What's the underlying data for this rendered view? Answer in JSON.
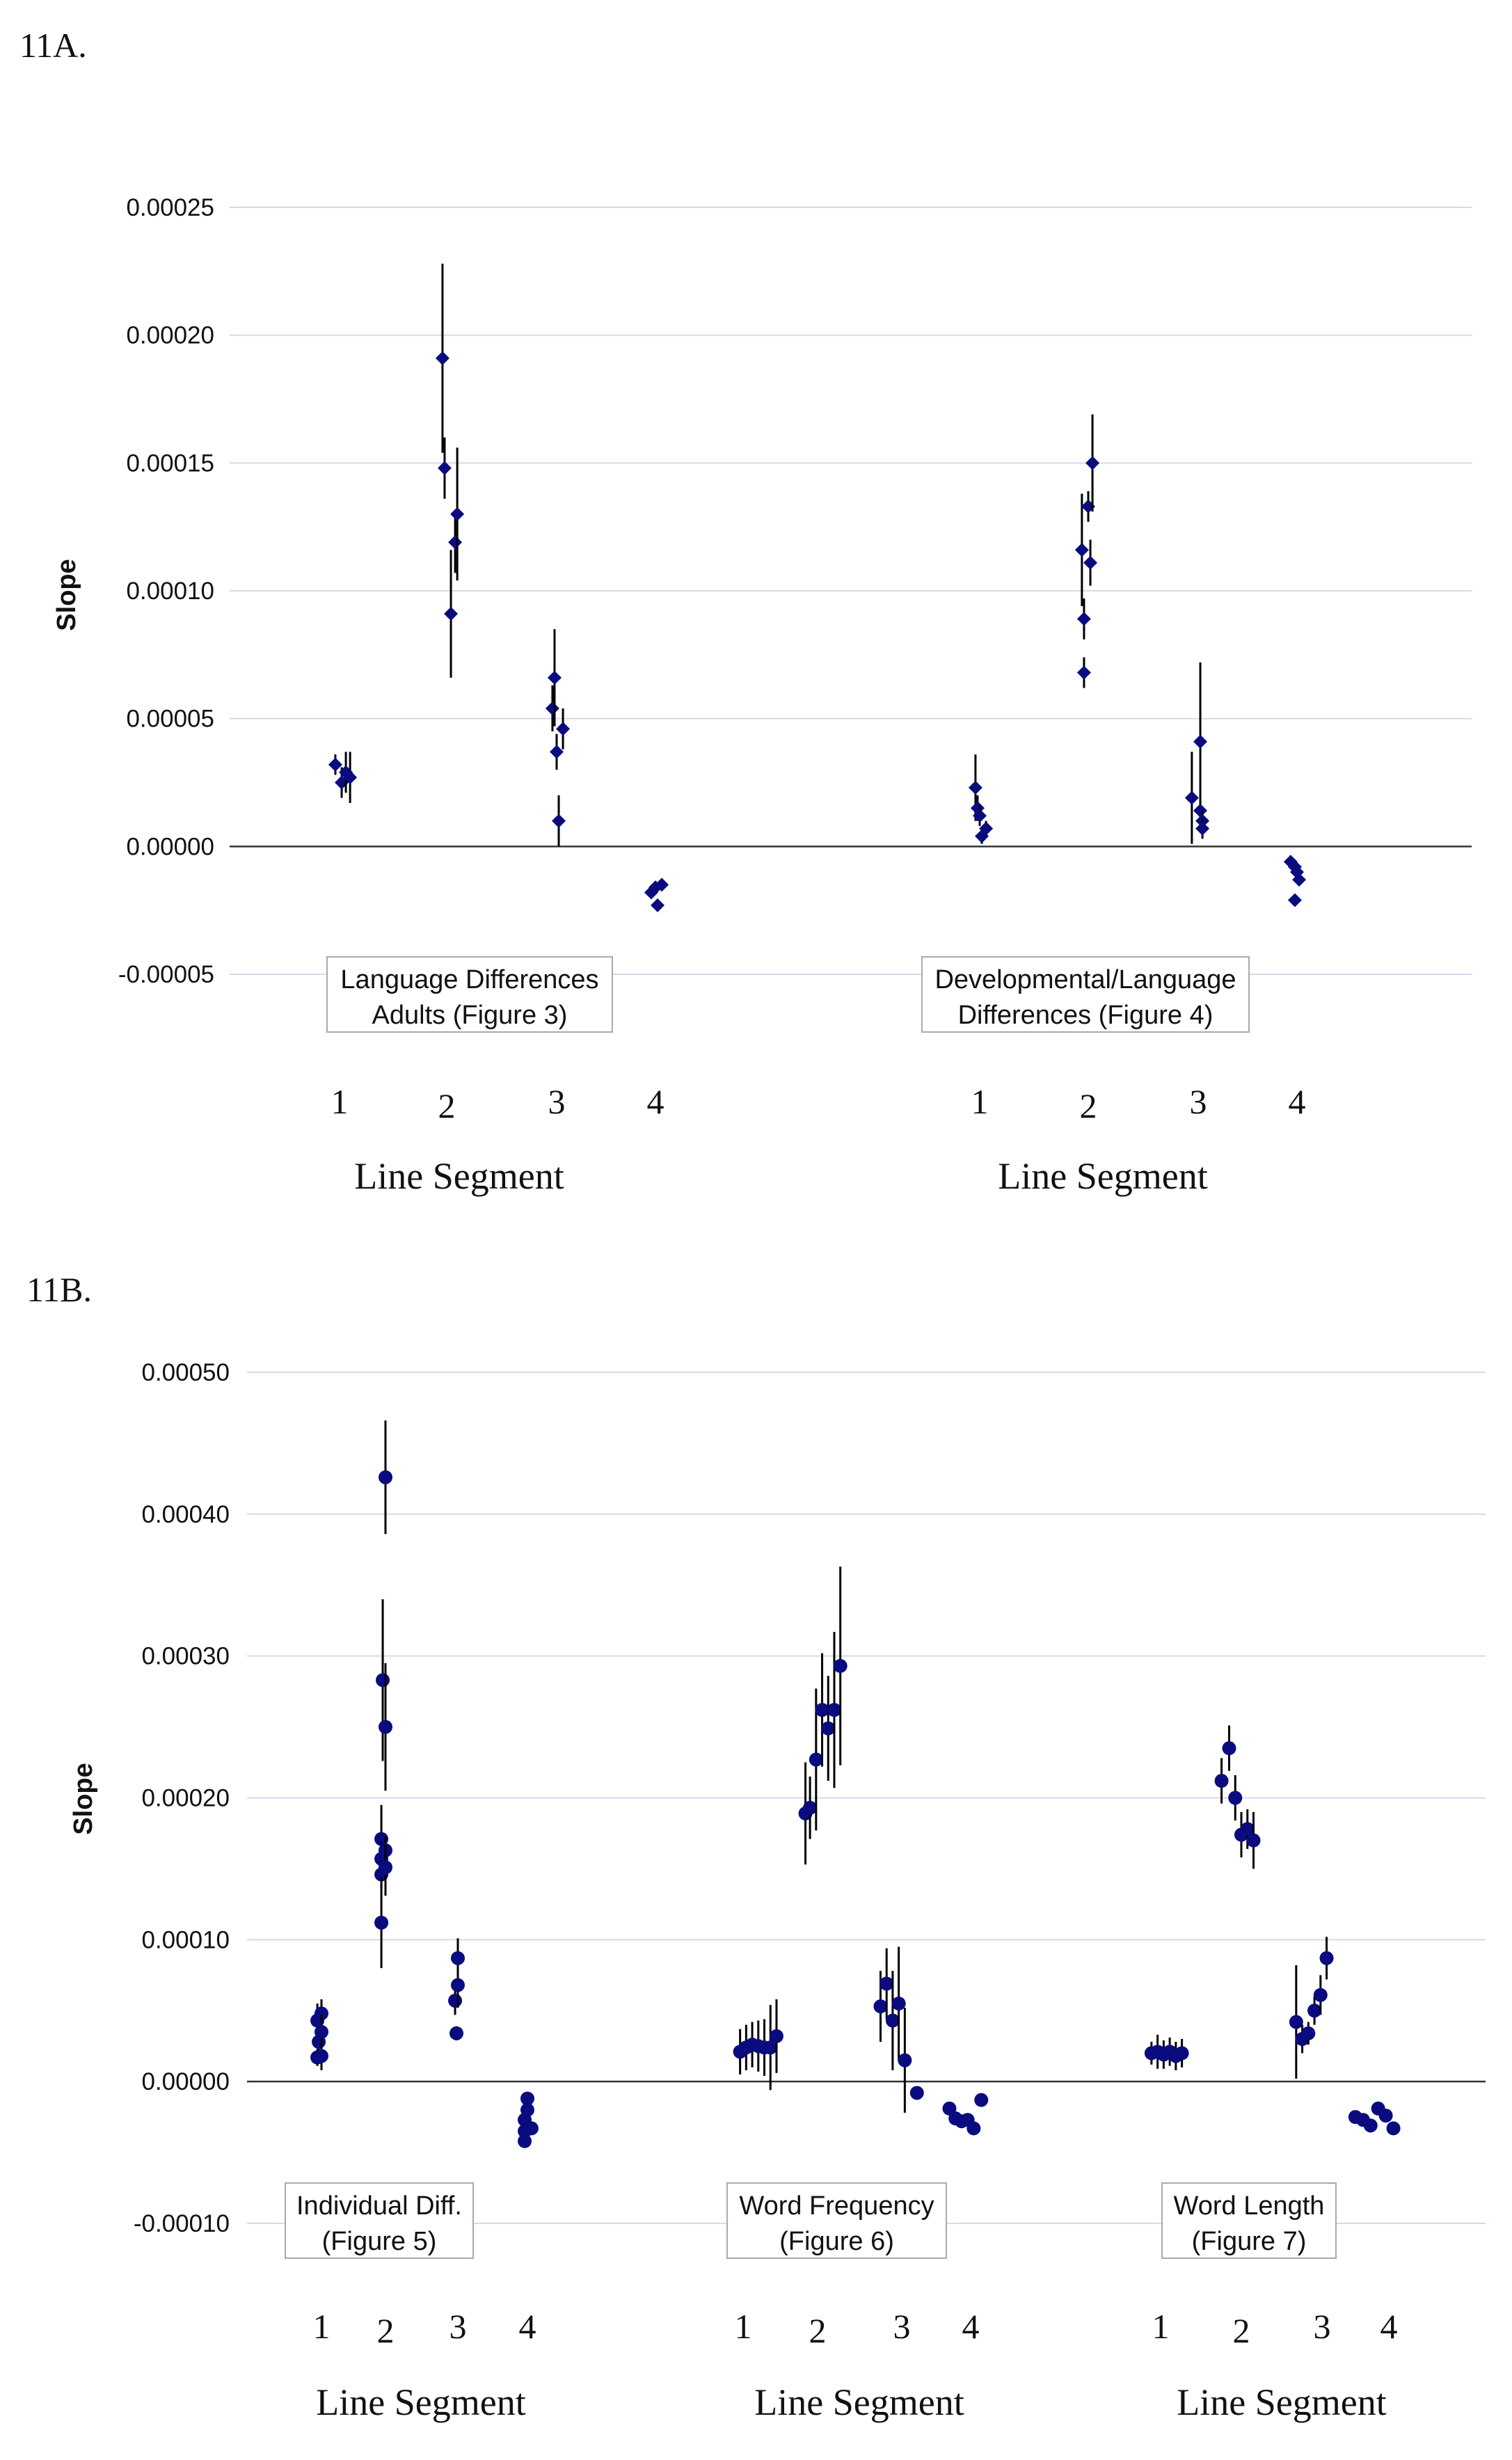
{
  "chart_data": [
    {
      "id": "11A",
      "panel_label": "11A.",
      "type": "scatter",
      "marker": "diamond",
      "ylabel": "Slope",
      "ylim": [
        -5e-05,
        0.00025
      ],
      "yticks": [
        "0.00025",
        "0.00020",
        "0.00015",
        "0.00010",
        "0.00005",
        "0.00000",
        "-0.00005"
      ],
      "grid": true,
      "groups": [
        {
          "label": [
            "Language Differences",
            "Adults (Figure 3)"
          ],
          "xlabel": "Line Segment",
          "tick_labels": [
            "1",
            "2",
            "3",
            "4"
          ],
          "points": [
            {
              "segment": 1,
              "offset": -0.04,
              "y": 3.2e-05,
              "err": 4e-06
            },
            {
              "segment": 1,
              "offset": 0.02,
              "y": 2.5e-05,
              "err": 6e-06
            },
            {
              "segment": 1,
              "offset": 0.06,
              "y": 2.9e-05,
              "err": 8e-06
            },
            {
              "segment": 1,
              "offset": 0.1,
              "y": 2.7e-05,
              "err": 1e-05
            },
            {
              "segment": 2,
              "offset": -0.04,
              "y": 0.000191,
              "err": 3.7e-05
            },
            {
              "segment": 2,
              "offset": -0.02,
              "y": 0.000148,
              "err": 1.2e-05
            },
            {
              "segment": 2,
              "offset": 0.04,
              "y": 9.1e-05,
              "err": 2.5e-05
            },
            {
              "segment": 2,
              "offset": 0.08,
              "y": 0.000119,
              "err": 1.2e-05
            },
            {
              "segment": 2,
              "offset": 0.1,
              "y": 0.00013,
              "err": 2.6e-05
            },
            {
              "segment": 3,
              "offset": -0.04,
              "y": 5.4e-05,
              "err": 9e-06
            },
            {
              "segment": 3,
              "offset": -0.02,
              "y": 6.6e-05,
              "err": 1.9e-05
            },
            {
              "segment": 3,
              "offset": 0.0,
              "y": 3.7e-05,
              "err": 7e-06
            },
            {
              "segment": 3,
              "offset": 0.02,
              "y": 1e-05,
              "err": 1e-05
            },
            {
              "segment": 3,
              "offset": 0.06,
              "y": 4.6e-05,
              "err": 8e-06
            },
            {
              "segment": 4,
              "offset": -0.04,
              "y": -1.8e-05,
              "err": 0
            },
            {
              "segment": 4,
              "offset": 0.0,
              "y": -1.6e-05,
              "err": 0
            },
            {
              "segment": 4,
              "offset": 0.02,
              "y": -2.3e-05,
              "err": 0
            },
            {
              "segment": 4,
              "offset": 0.06,
              "y": -1.5e-05,
              "err": 0
            }
          ]
        },
        {
          "label": [
            "Developmental/Language",
            "Differences (Figure 4)"
          ],
          "xlabel": "Line Segment",
          "tick_labels": [
            "1",
            "2",
            "3",
            "4"
          ],
          "points": [
            {
              "segment": 1,
              "offset": -0.04,
              "y": 2.3e-05,
              "err": 1.3e-05
            },
            {
              "segment": 1,
              "offset": -0.02,
              "y": 1.5e-05,
              "err": 5e-06
            },
            {
              "segment": 1,
              "offset": 0.0,
              "y": 1.2e-05,
              "err": 4e-06
            },
            {
              "segment": 1,
              "offset": 0.02,
              "y": 4e-06,
              "err": 3e-06
            },
            {
              "segment": 1,
              "offset": 0.06,
              "y": 7e-06,
              "err": 3e-06
            },
            {
              "segment": 2,
              "offset": -0.06,
              "y": 0.000116,
              "err": 2.2e-05
            },
            {
              "segment": 2,
              "offset": -0.04,
              "y": 8.9e-05,
              "err": 8e-06
            },
            {
              "segment": 2,
              "offset": -0.04,
              "y": 6.8e-05,
              "err": 6e-06
            },
            {
              "segment": 2,
              "offset": 0.0,
              "y": 0.000133,
              "err": 6e-06
            },
            {
              "segment": 2,
              "offset": 0.02,
              "y": 0.000111,
              "err": 9e-06
            },
            {
              "segment": 2,
              "offset": 0.04,
              "y": 0.00015,
              "err": 1.9e-05
            },
            {
              "segment": 3,
              "offset": -0.06,
              "y": 1.9e-05,
              "err": 1.8e-05
            },
            {
              "segment": 3,
              "offset": 0.02,
              "y": 4.1e-05,
              "err": 3.1e-05
            },
            {
              "segment": 3,
              "offset": 0.02,
              "y": 1.4e-05,
              "err": 4e-06
            },
            {
              "segment": 3,
              "offset": 0.04,
              "y": 1e-05,
              "err": 4e-06
            },
            {
              "segment": 3,
              "offset": 0.04,
              "y": 7e-06,
              "err": 4e-06
            },
            {
              "segment": 4,
              "offset": -0.06,
              "y": -6e-06,
              "err": 0
            },
            {
              "segment": 4,
              "offset": -0.02,
              "y": -8e-06,
              "err": 0
            },
            {
              "segment": 4,
              "offset": 0.0,
              "y": -1e-05,
              "err": 0
            },
            {
              "segment": 4,
              "offset": 0.02,
              "y": -1.3e-05,
              "err": 0
            },
            {
              "segment": 4,
              "offset": -0.02,
              "y": -2.1e-05,
              "err": 0
            }
          ]
        }
      ]
    },
    {
      "id": "11B",
      "panel_label": "11B.",
      "type": "scatter",
      "marker": "circle",
      "ylabel": "Slope",
      "ylim": [
        -0.0001,
        0.0005
      ],
      "yticks": [
        "0.00050",
        "0.00040",
        "0.00030",
        "0.00020",
        "0.00010",
        "0.00000",
        "-0.00010"
      ],
      "grid": true,
      "groups": [
        {
          "label": [
            "Individual Diff.",
            "(Figure 5)"
          ],
          "xlabel": "Line Segment",
          "tick_labels": [
            "1",
            "2",
            "3",
            "4"
          ],
          "points": [
            {
              "segment": 1,
              "offset": -0.06,
              "y": 4.3e-05,
              "err": 1.2e-05
            },
            {
              "segment": 1,
              "offset": -0.04,
              "y": 2.8e-05,
              "err": 1e-05
            },
            {
              "segment": 1,
              "offset": -0.06,
              "y": 1.7e-05,
              "err": 6e-06
            },
            {
              "segment": 1,
              "offset": 0.0,
              "y": 4.8e-05,
              "err": 1e-05
            },
            {
              "segment": 1,
              "offset": 0.0,
              "y": 3.5e-05,
              "err": 1.2e-05
            },
            {
              "segment": 1,
              "offset": 0.0,
              "y": 1.8e-05,
              "err": 1e-05
            },
            {
              "segment": 2,
              "offset": -0.04,
              "y": 0.000283,
              "err": 5.7e-05
            },
            {
              "segment": 2,
              "offset": 0.0,
              "y": 0.00025,
              "err": 4.5e-05
            },
            {
              "segment": 2,
              "offset": 0.0,
              "y": 0.000426,
              "err": 4e-05
            },
            {
              "segment": 2,
              "offset": -0.06,
              "y": 0.000171,
              "err": 2.4e-05
            },
            {
              "segment": 2,
              "offset": -0.06,
              "y": 0.000157,
              "err": 1.2e-05
            },
            {
              "segment": 2,
              "offset": -0.06,
              "y": 0.000146,
              "err": 1e-05
            },
            {
              "segment": 2,
              "offset": -0.06,
              "y": 0.000112,
              "err": 3.2e-05
            },
            {
              "segment": 2,
              "offset": 0.0,
              "y": 0.000163,
              "err": 1e-05
            },
            {
              "segment": 2,
              "offset": 0.0,
              "y": 0.000151,
              "err": 2e-05
            },
            {
              "segment": 3,
              "offset": -0.04,
              "y": 5.7e-05,
              "err": 1e-05
            },
            {
              "segment": 3,
              "offset": 0.0,
              "y": 6.8e-05,
              "err": 1.6e-05
            },
            {
              "segment": 3,
              "offset": 0.0,
              "y": 8.7e-05,
              "err": 1.4e-05
            },
            {
              "segment": 3,
              "offset": -0.02,
              "y": 3.4e-05,
              "err": 5e-06
            },
            {
              "segment": 4,
              "offset": 0.0,
              "y": -1.2e-05,
              "err": 0
            },
            {
              "segment": 4,
              "offset": 0.0,
              "y": -2e-05,
              "err": 0
            },
            {
              "segment": 4,
              "offset": -0.04,
              "y": -2.7e-05,
              "err": 0
            },
            {
              "segment": 4,
              "offset": -0.04,
              "y": -3.5e-05,
              "err": 0
            },
            {
              "segment": 4,
              "offset": -0.04,
              "y": -4.2e-05,
              "err": 0
            },
            {
              "segment": 4,
              "offset": 0.06,
              "y": -3.3e-05,
              "err": 0
            }
          ]
        },
        {
          "label": [
            "Word Frequency",
            "(Figure 6)"
          ],
          "xlabel": "Line Segment",
          "tick_labels": [
            "1",
            "2",
            "3",
            "4"
          ],
          "points": [
            {
              "segment": 1,
              "offset": -0.04,
              "y": 2.1e-05,
              "err": 1.6e-05
            },
            {
              "segment": 1,
              "offset": 0.04,
              "y": 2.4e-05,
              "err": 1.6e-05
            },
            {
              "segment": 1,
              "offset": 0.12,
              "y": 2.6e-05,
              "err": 1.6e-05
            },
            {
              "segment": 1,
              "offset": 0.2,
              "y": 2.5e-05,
              "err": 1.8e-05
            },
            {
              "segment": 1,
              "offset": 0.28,
              "y": 2.4e-05,
              "err": 2e-05
            },
            {
              "segment": 1,
              "offset": 0.36,
              "y": 2.4e-05,
              "err": 3e-05
            },
            {
              "segment": 1,
              "offset": 0.44,
              "y": 3.2e-05,
              "err": 2.6e-05
            },
            {
              "segment": 2,
              "offset": -0.16,
              "y": 0.000189,
              "err": 3.6e-05
            },
            {
              "segment": 2,
              "offset": -0.1,
              "y": 0.000193,
              "err": 2.2e-05
            },
            {
              "segment": 2,
              "offset": -0.02,
              "y": 0.000227,
              "err": 5e-05
            },
            {
              "segment": 2,
              "offset": 0.06,
              "y": 0.000262,
              "err": 4e-05
            },
            {
              "segment": 2,
              "offset": 0.14,
              "y": 0.000249,
              "err": 3.7e-05
            },
            {
              "segment": 2,
              "offset": 0.22,
              "y": 0.000262,
              "err": 5.5e-05
            },
            {
              "segment": 2,
              "offset": 0.3,
              "y": 0.000293,
              "err": 7e-05
            },
            {
              "segment": 3,
              "offset": -0.28,
              "y": 5.3e-05,
              "err": 2.5e-05
            },
            {
              "segment": 3,
              "offset": -0.2,
              "y": 6.9e-05,
              "err": 2.5e-05
            },
            {
              "segment": 3,
              "offset": -0.12,
              "y": 4.3e-05,
              "err": 3.5e-05
            },
            {
              "segment": 3,
              "offset": -0.04,
              "y": 5.5e-05,
              "err": 4e-05
            },
            {
              "segment": 3,
              "offset": 0.04,
              "y": 1.5e-05,
              "err": 3.7e-05
            },
            {
              "segment": 3,
              "offset": 0.2,
              "y": -8e-06,
              "err": 0
            },
            {
              "segment": 4,
              "offset": -0.28,
              "y": -1.9e-05,
              "err": 0
            },
            {
              "segment": 4,
              "offset": -0.2,
              "y": -2.6e-05,
              "err": 0
            },
            {
              "segment": 4,
              "offset": -0.12,
              "y": -2.8e-05,
              "err": 0
            },
            {
              "segment": 4,
              "offset": -0.04,
              "y": -2.7e-05,
              "err": 0
            },
            {
              "segment": 4,
              "offset": 0.04,
              "y": -3.3e-05,
              "err": 0
            },
            {
              "segment": 4,
              "offset": 0.14,
              "y": -1.3e-05,
              "err": 0
            }
          ]
        },
        {
          "label": [
            "Word Length",
            "(Figure 7)"
          ],
          "xlabel": "Line Segment",
          "tick_labels": [
            "1",
            "2",
            "3",
            "4"
          ],
          "points": [
            {
              "segment": 1,
              "offset": -0.12,
              "y": 2e-05,
              "err": 8e-06
            },
            {
              "segment": 1,
              "offset": -0.04,
              "y": 2.1e-05,
              "err": 1.2e-05
            },
            {
              "segment": 1,
              "offset": 0.04,
              "y": 1.9e-05,
              "err": 1e-05
            },
            {
              "segment": 1,
              "offset": 0.12,
              "y": 2.1e-05,
              "err": 1e-05
            },
            {
              "segment": 1,
              "offset": 0.2,
              "y": 1.8e-05,
              "err": 1e-05
            },
            {
              "segment": 1,
              "offset": 0.28,
              "y": 2e-05,
              "err": 1e-05
            },
            {
              "segment": 2,
              "offset": -0.26,
              "y": 0.000212,
              "err": 1.6e-05
            },
            {
              "segment": 2,
              "offset": -0.16,
              "y": 0.000235,
              "err": 1.6e-05
            },
            {
              "segment": 2,
              "offset": -0.08,
              "y": 0.0002,
              "err": 1.6e-05
            },
            {
              "segment": 2,
              "offset": 0.0,
              "y": 0.000174,
              "err": 1.6e-05
            },
            {
              "segment": 2,
              "offset": 0.08,
              "y": 0.000178,
              "err": 1.4e-05
            },
            {
              "segment": 2,
              "offset": 0.16,
              "y": 0.00017,
              "err": 2e-05
            },
            {
              "segment": 3,
              "offset": -0.34,
              "y": 4.2e-05,
              "err": 4e-05
            },
            {
              "segment": 3,
              "offset": -0.26,
              "y": 3e-05,
              "err": 1e-05
            },
            {
              "segment": 3,
              "offset": -0.18,
              "y": 3.4e-05,
              "err": 8e-06
            },
            {
              "segment": 3,
              "offset": -0.1,
              "y": 5e-05,
              "err": 1e-05
            },
            {
              "segment": 3,
              "offset": -0.02,
              "y": 6.1e-05,
              "err": 1.4e-05
            },
            {
              "segment": 3,
              "offset": 0.06,
              "y": 8.7e-05,
              "err": 1.5e-05
            },
            {
              "segment": 4,
              "offset": -0.44,
              "y": -2.5e-05,
              "err": 0
            },
            {
              "segment": 4,
              "offset": -0.34,
              "y": -2.7e-05,
              "err": 0
            },
            {
              "segment": 4,
              "offset": -0.24,
              "y": -3.1e-05,
              "err": 0
            },
            {
              "segment": 4,
              "offset": -0.14,
              "y": -1.9e-05,
              "err": 0
            },
            {
              "segment": 4,
              "offset": -0.04,
              "y": -2.4e-05,
              "err": 0
            },
            {
              "segment": 4,
              "offset": 0.06,
              "y": -3.3e-05,
              "err": 0
            }
          ]
        }
      ]
    }
  ],
  "colors": {
    "marker": "#0b0b80",
    "errorbar": "#000000",
    "gridline": "#d8d8ee",
    "zero_line": "#333333",
    "label_box": "#aaaaaa"
  }
}
